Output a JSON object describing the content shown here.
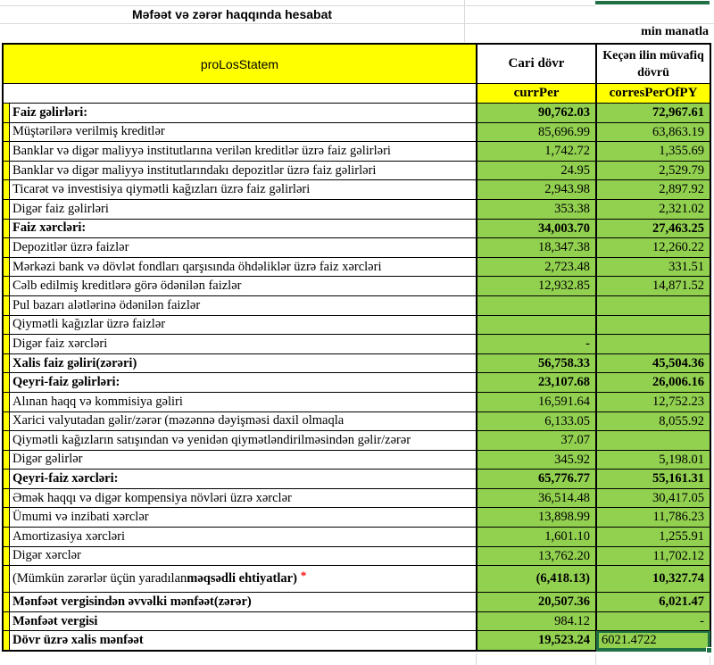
{
  "page": {
    "title": "Məfəət və zərər haqqında hesabat",
    "unit_note": "min manatla"
  },
  "colors": {
    "cell_fill_green": "#92D050",
    "header_fill_yellow": "#FFFF00",
    "selection_green": "#1F7145",
    "asterisk_red": "#FF0000",
    "border_black": "#000000",
    "gridline_gray": "#D9D9D9"
  },
  "table": {
    "name_code": "proLosStatem",
    "columns": [
      {
        "header": "Cari dövr",
        "code": "currPer"
      },
      {
        "header": "Keçən ilin müvafiq dövrü",
        "code": "corresPerOfPY"
      }
    ],
    "selected_cell": {
      "column": "corresPerOfPY",
      "row_label": "Dövr üzrə xalis mənfəət",
      "value": "6021.4722"
    },
    "rows": [
      {
        "label": "Faiz gəlirləri:",
        "curr": "90,762.03",
        "prior": "72,967.61",
        "section": true
      },
      {
        "label": "Müştərilərə verilmiş kreditlər",
        "curr": "85,696.99",
        "prior": "63,863.19"
      },
      {
        "label": "Banklar və digər maliyyə institutlarına verilən kreditlər üzrə faiz gəlirləri",
        "curr": "1,742.72",
        "prior": "1,355.69"
      },
      {
        "label": "Banklar və digər maliyyə institutlarındakı depozitlər üzrə faiz gəlirləri",
        "curr": "24.95",
        "prior": "2,529.79"
      },
      {
        "label": "Ticarət və investisiya qiymətli kağızları üzrə faiz gəlirləri",
        "curr": "2,943.98",
        "prior": "2,897.92"
      },
      {
        "label": "Digər faiz gəlirləri",
        "curr": "353.38",
        "prior": "2,321.02"
      },
      {
        "label": "Faiz xərcləri:",
        "curr": "34,003.70",
        "prior": "27,463.25",
        "section": true
      },
      {
        "label": "Depozitlər üzrə faizlər",
        "curr": "18,347.38",
        "prior": "12,260.22"
      },
      {
        "label": "Mərkəzi bank və dövlət fondları qarşısında öhdəliklər üzrə faiz xərcləri",
        "curr": "2,723.48",
        "prior": "331.51"
      },
      {
        "label": "Cəlb edilmiş kreditlərə görə ödənilən faizlər",
        "curr": "12,932.85",
        "prior": "14,871.52"
      },
      {
        "label": "Pul bazarı alətlərinə ödənilən faizlər",
        "curr": "",
        "prior": ""
      },
      {
        "label": "Qiymətli kağızlar üzrə faizlər",
        "curr": "",
        "prior": ""
      },
      {
        "label": "Digər faiz xərcləri",
        "curr": "-",
        "prior": ""
      },
      {
        "label": "Xalis faiz gəliri(zərəri)",
        "curr": "56,758.33",
        "prior": "45,504.36",
        "section": true
      },
      {
        "label": "Qeyri-faiz gəlirləri:",
        "curr": "23,107.68",
        "prior": "26,006.16",
        "section": true
      },
      {
        "label": "Alınan haqq və kommisiya gəliri",
        "curr": "16,591.64",
        "prior": "12,752.23"
      },
      {
        "label": "Xarici valyutadan gəlir/zərər (məzənnə dəyişməsi daxil olmaqla",
        "curr": "6,133.05",
        "prior": "8,055.92"
      },
      {
        "label": "Qiymətli kağızların satışından və yenidən qiymətləndirilməsindən gəlir/zərər",
        "curr": "37.07",
        "prior": ""
      },
      {
        "label": "Digər gəlirlər",
        "curr": "345.92",
        "prior": "5,198.01"
      },
      {
        "label": "Qeyri-faiz xərcləri:",
        "curr": "65,776.77",
        "prior": "55,161.31",
        "section": true
      },
      {
        "label": "Əmək haqqı və digər kompensiya növləri üzrə xərclər",
        "curr": "36,514.48",
        "prior": "30,417.05"
      },
      {
        "label": "Ümumi və inzibati xərclər",
        "curr": "13,898.99",
        "prior": "11,786.23"
      },
      {
        "label": "Amortizasiya xərcləri",
        "curr": "1,601.10",
        "prior": "1,255.91"
      },
      {
        "label": "Digər xərclər",
        "curr": "13,762.20",
        "prior": "11,702.12"
      },
      {
        "label": "(Mümkün zərərlər üçün yaradılan ",
        "boldSuffix": "məqsədli ehtiyatlar)",
        "asterisk": "*",
        "curr": "(6,418.13)",
        "prior": "10,327.74",
        "valuesBold": true,
        "tall": true
      },
      {
        "label": "Mənfəət vergisindən əvvəlki mənfəət(zərər)",
        "curr": "20,507.36",
        "prior": "6,021.47",
        "section": true
      },
      {
        "label": "Mənfəət vergisi",
        "labelBold": true,
        "curr": "984.12",
        "prior": "-"
      },
      {
        "label": "Dövr üzrə xalis mənfəət",
        "labelBold": true,
        "curr": "19,523.24",
        "currBold": true,
        "prior": "6021.4722",
        "selected": true
      }
    ]
  }
}
